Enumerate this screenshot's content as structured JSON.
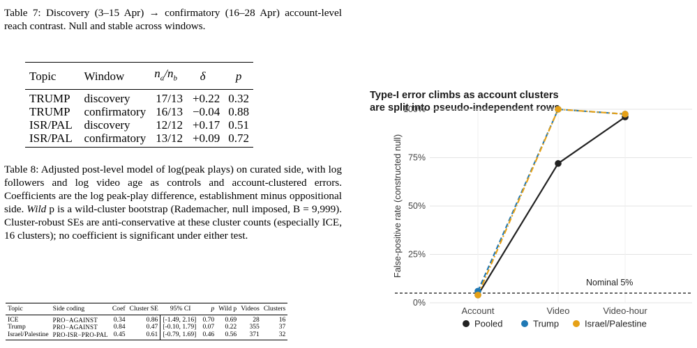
{
  "table7": {
    "caption": "Table 7: Discovery (3–15 Apr) → confirmatory (16–28 Apr) account-level reach contrast. Null and stable across windows.",
    "headers": [
      "Topic",
      "Window",
      "n_a/n_b",
      "δ",
      "p"
    ],
    "rows": [
      [
        "TRUMP",
        "discovery",
        "17/13",
        "+0.22",
        "0.32"
      ],
      [
        "TRUMP",
        "confirmatory",
        "16/13",
        "−0.04",
        "0.88"
      ],
      [
        "ISR/PAL",
        "discovery",
        "12/12",
        "+0.17",
        "0.51"
      ],
      [
        "ISR/PAL",
        "confirmatory",
        "13/12",
        "+0.09",
        "0.72"
      ]
    ]
  },
  "table8": {
    "caption_a": "Table 8: Adjusted post-level model of log(peak plays) on curated side, with log followers and log video age as controls and account-clustered errors. Coefficients are the log peak-play difference, establishment minus oppositional side.",
    "caption_wild": "Wild",
    "caption_b": "p is a wild-cluster bootstrap (Rademacher, null imposed, B = 9,999). Cluster-robust SEs are anti-conservative at these cluster counts (especially ICE, 16 clusters); no coefficient is significant under either test.",
    "headers": [
      "Topic",
      "Side coding",
      "Coef",
      "Cluster SE",
      "95% CI",
      "p",
      "Wild p",
      "Videos",
      "Clusters"
    ],
    "rows": [
      [
        "ICE",
        "PRO−AGAINST",
        "0.34",
        "0.86",
        "[-1.49, 2.16]",
        "0.70",
        "0.69",
        "28",
        "16"
      ],
      [
        "Trump",
        "PRO−AGAINST",
        "0.84",
        "0.47",
        "[-0.10, 1.79]",
        "0.07",
        "0.22",
        "355",
        "37"
      ],
      [
        "Israel/Palestine",
        "PRO-ISR−PRO-PAL",
        "0.45",
        "0.61",
        "[-0.79, 1.69]",
        "0.46",
        "0.56",
        "371",
        "32"
      ]
    ]
  },
  "chart_data": {
    "type": "line",
    "title": "Type-I error climbs as account clusters are split into pseudo-independent rows",
    "title_lines": [
      "Type-I error climbs as account clusters",
      "are split into pseudo-independent rows"
    ],
    "xlabel": "",
    "ylabel": "False-positive rate (constructed null)",
    "categories": [
      "Account",
      "Video",
      "Video-hour"
    ],
    "y_ticks": [
      "0%",
      "25%",
      "50%",
      "75%",
      "100%"
    ],
    "ylim": [
      0,
      1
    ],
    "grid": true,
    "legend_position": "bottom",
    "series": [
      {
        "name": "Pooled",
        "values": [
          0.04,
          0.72,
          0.96
        ],
        "color": "#222222",
        "dash": "solid"
      },
      {
        "name": "Trump",
        "values": [
          0.06,
          1.0,
          0.975
        ],
        "color": "#1f78b4",
        "dash": "dashed"
      },
      {
        "name": "Israel/Palestine",
        "values": [
          0.04,
          1.0,
          0.975
        ],
        "color": "#e6a117",
        "dash": "dotdash"
      }
    ],
    "reference_line": {
      "value": 0.05,
      "label": "Nominal 5%"
    }
  }
}
